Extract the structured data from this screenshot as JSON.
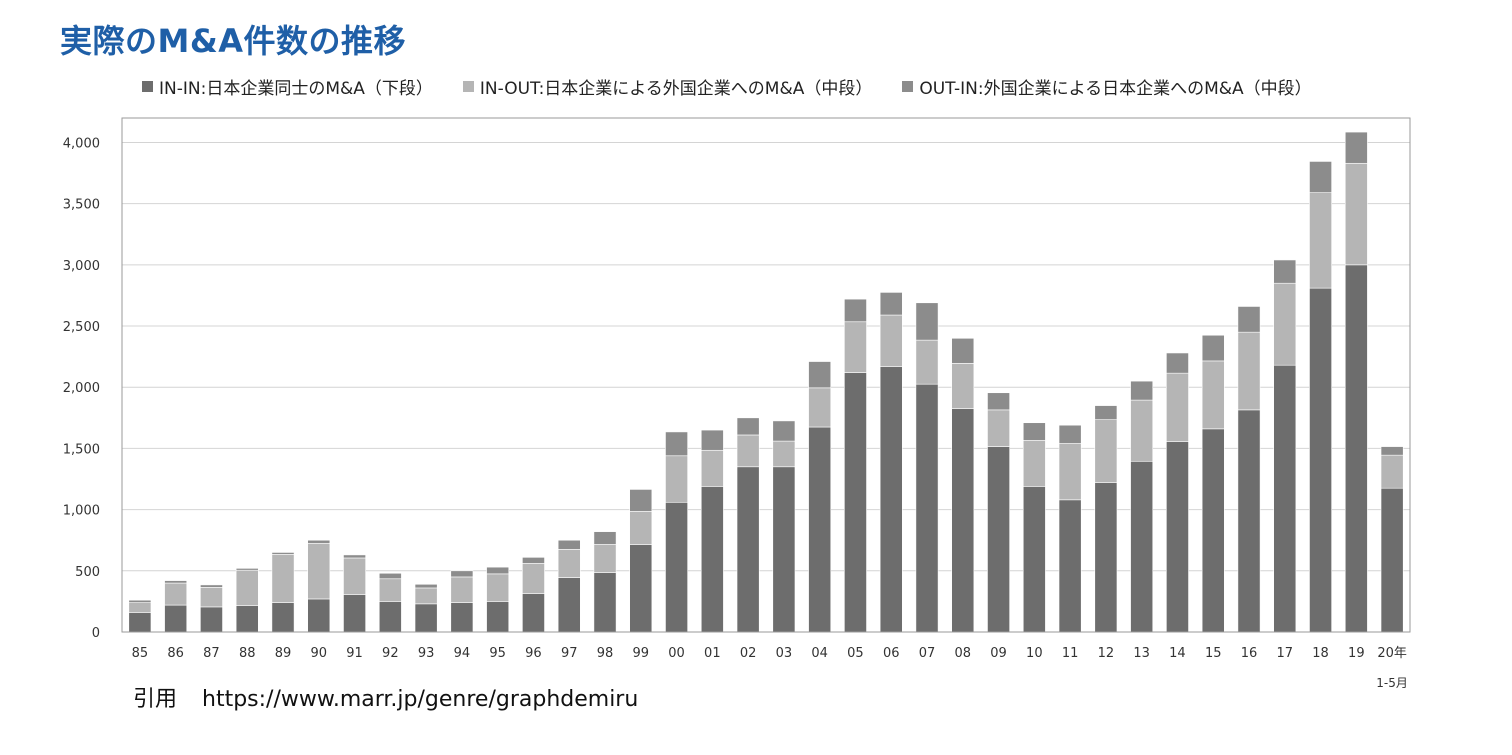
{
  "chart_data": {
    "type": "bar",
    "stacked": true,
    "title": "実際のM&A件数の推移",
    "categories": [
      "85",
      "86",
      "87",
      "88",
      "89",
      "90",
      "91",
      "92",
      "93",
      "94",
      "95",
      "96",
      "97",
      "98",
      "99",
      "00",
      "01",
      "02",
      "03",
      "04",
      "05",
      "06",
      "07",
      "08",
      "09",
      "10",
      "11",
      "12",
      "13",
      "14",
      "15",
      "16",
      "17",
      "18",
      "19",
      "20年"
    ],
    "last_category_sublabel": "1-5月",
    "series": [
      {
        "name": "IN-IN:日本企業同士のM&A（下段）",
        "color": "#6d6d6d",
        "values": [
          160,
          220,
          205,
          215,
          240,
          270,
          305,
          250,
          230,
          240,
          250,
          315,
          445,
          485,
          715,
          1060,
          1190,
          1350,
          1350,
          1675,
          2120,
          2170,
          2025,
          1825,
          1515,
          1190,
          1080,
          1220,
          1395,
          1555,
          1660,
          1815,
          2180,
          2810,
          3000,
          1175
        ]
      },
      {
        "name": "IN-OUT:日本企業による外国企業へのM&A（中段）",
        "color": "#b5b5b5",
        "values": [
          80,
          180,
          160,
          290,
          395,
          455,
          300,
          185,
          130,
          210,
          225,
          245,
          230,
          230,
          270,
          380,
          295,
          260,
          210,
          320,
          415,
          420,
          360,
          370,
          300,
          375,
          460,
          515,
          500,
          560,
          555,
          635,
          670,
          780,
          830,
          270
        ]
      },
      {
        "name": "OUT-IN:外国企業による日本企業へのM&A（中段）",
        "color": "#8c8c8c",
        "values": [
          20,
          20,
          20,
          15,
          15,
          25,
          25,
          45,
          30,
          50,
          55,
          50,
          75,
          105,
          180,
          195,
          165,
          140,
          165,
          215,
          185,
          185,
          305,
          205,
          140,
          145,
          150,
          115,
          155,
          165,
          210,
          210,
          190,
          255,
          255,
          70
        ]
      }
    ],
    "ylim": [
      0,
      4200
    ],
    "yticks": [
      0,
      500,
      1000,
      1500,
      2000,
      2500,
      3000,
      3500,
      4000
    ],
    "ytick_labels": [
      "0",
      "500",
      "1,000",
      "1,500",
      "2,000",
      "2,500",
      "3,000",
      "3,500",
      "4,000"
    ],
    "grid": true,
    "legend_position": "top"
  },
  "source": {
    "label": "引用",
    "url": "https://www.marr.jp/genre/graphdemiru"
  }
}
